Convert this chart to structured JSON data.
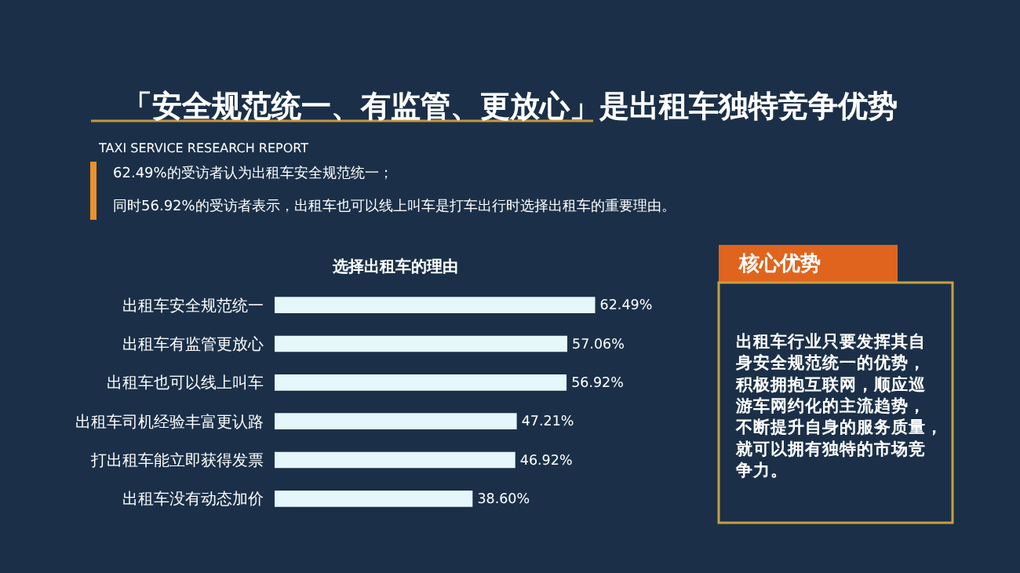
{
  "chart_data": {
    "type": "bar",
    "orientation": "horizontal",
    "title": "「安全规范统一、有监管、更放心」是出租车独特竞争优势",
    "subtitle": "TAXI SERVICE RESEARCH REPORT",
    "categories": [
      "出租车安全规范统一",
      "出租车有监管更放心",
      "出租车也可以线上叫车",
      "出租车司机经验丰富更认路",
      "打出租车能立即获得发票",
      "出租车没有动态加价"
    ],
    "values": [
      62.49,
      57.06,
      56.92,
      47.21,
      46.92,
      38.6
    ],
    "value_labels": [
      "62.49%",
      "57.06%",
      "56.92%",
      "47.21%",
      "46.92%",
      "38.60%"
    ],
    "color": "#e6f7fb",
    "legend": false,
    "grid": false,
    "tick_labels": "y",
    "annotations": [
      "62.49%的受访者认为出租车安全规范统一；",
      "同时56.92%的受访者表示，出租车也可以线上叫车是打车出行时选择出租车的重要理由。",
      "选择出租车的理由",
      "核心优势",
      "出租车行业只要发挥其自身安全规范统一的优势，积极拥抱互联网，顺应巡游车网约化的主流趋势，不断提升自身的服务质量，就可以拥有独特的市场竞争力。"
    ]
  }
}
